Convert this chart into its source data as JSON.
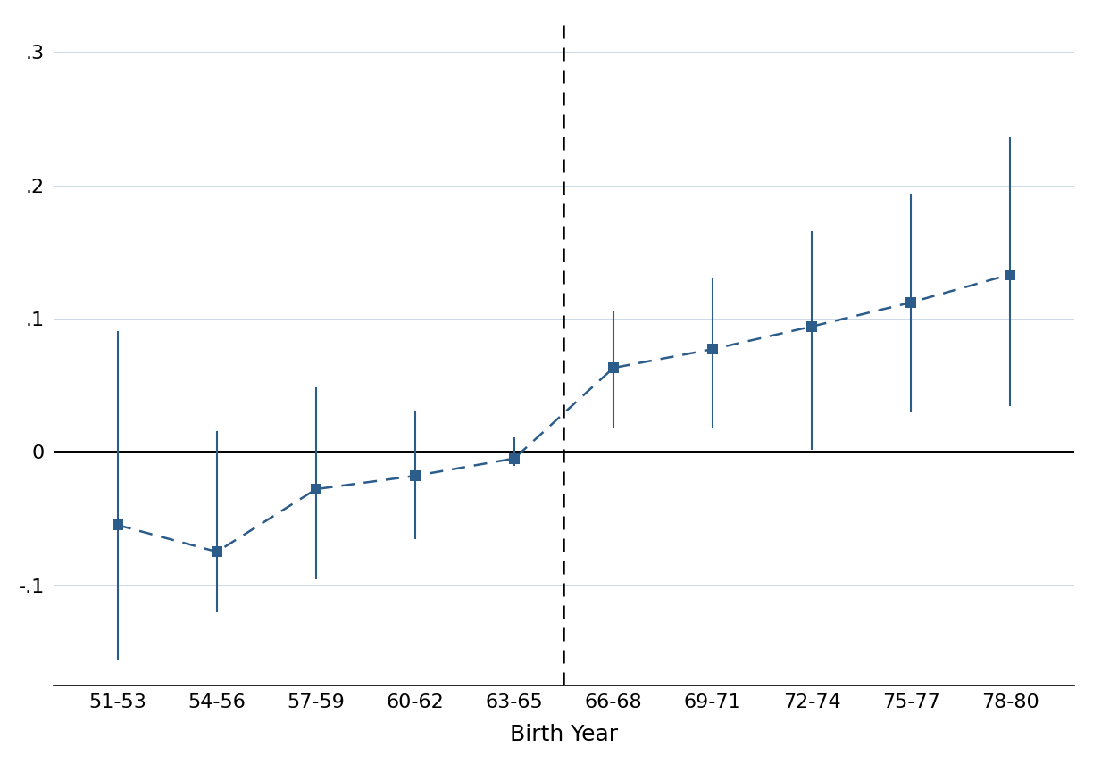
{
  "categories": [
    "51-53",
    "54-56",
    "57-59",
    "60-62",
    "63-65",
    "66-68",
    "69-71",
    "72-74",
    "75-77",
    "78-80"
  ],
  "x_values": [
    0,
    1,
    2,
    3,
    4,
    5,
    6,
    7,
    8,
    9
  ],
  "means": [
    -0.055,
    -0.075,
    -0.028,
    -0.018,
    -0.005,
    0.063,
    0.077,
    0.094,
    0.112,
    0.133
  ],
  "ci_lower": [
    -0.155,
    -0.12,
    -0.095,
    -0.065,
    -0.01,
    0.018,
    0.018,
    0.002,
    0.03,
    0.035
  ],
  "ci_upper": [
    0.09,
    0.015,
    0.048,
    0.03,
    0.01,
    0.105,
    0.13,
    0.165,
    0.193,
    0.235
  ],
  "line_color": "#2b5c8a",
  "vline_x": 4.5,
  "xlabel": "Birth Year",
  "ylim": [
    -0.175,
    0.325
  ],
  "yticks": [
    -0.1,
    0.0,
    0.1,
    0.2,
    0.3
  ],
  "ytick_labels": [
    "-.1",
    "0",
    ".1",
    ".2",
    ".3"
  ],
  "background_color": "#ffffff",
  "grid_color": "#ccd9e6"
}
